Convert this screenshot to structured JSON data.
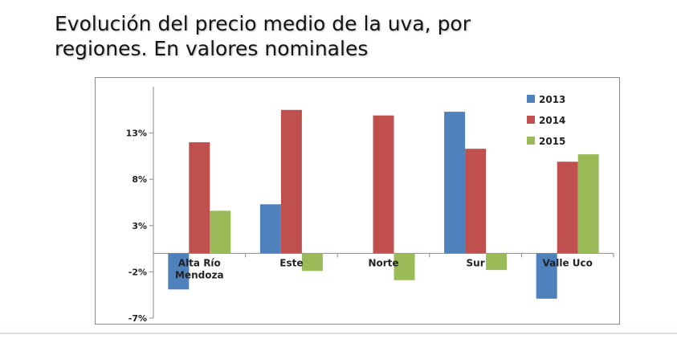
{
  "slide": {
    "title_line1": "Evolución del precio medio de la uva,  por",
    "title_line2": "regiones. En valores nominales"
  },
  "chart_data": {
    "type": "bar",
    "categories": [
      "Alta Río Mendoza",
      "Este",
      "Norte",
      "Sur",
      "Valle Uco"
    ],
    "category_lines": [
      [
        "Alta Río",
        "Mendoza"
      ],
      [
        "Este"
      ],
      [
        "Norte"
      ],
      [
        "Sur"
      ],
      [
        "Valle Uco"
      ]
    ],
    "series": [
      {
        "name": "2013",
        "color": "#4f81bd",
        "values": [
          -3.9,
          5.3,
          null,
          15.3,
          -4.9
        ]
      },
      {
        "name": "2014",
        "color": "#c0504d",
        "values": [
          12.0,
          15.5,
          14.9,
          11.3,
          9.9
        ]
      },
      {
        "name": "2015",
        "color": "#9bbb59",
        "values": [
          4.6,
          -1.9,
          -2.9,
          -1.8,
          10.7
        ]
      }
    ],
    "y_ticks": [
      "13%",
      "8%",
      "3%",
      "-2%",
      "-7%"
    ],
    "y_tick_values": [
      13,
      8,
      3,
      -2,
      -7
    ],
    "ylim": [
      -7,
      18
    ],
    "grid": false,
    "legend_position": "top-right"
  }
}
